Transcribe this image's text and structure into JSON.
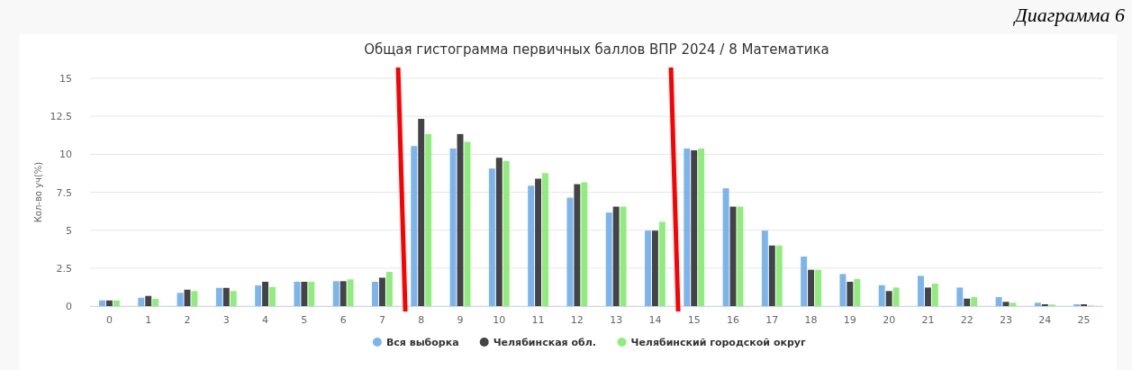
{
  "chart_data": {
    "type": "bar",
    "title": "Общая гистограмма первичных баллов ВПР 2024 / 8 Математика",
    "ylabel": "Кол-во уч(%)",
    "annotations": [
      "Диаграмма 6"
    ],
    "categories": [
      "0",
      "1",
      "2",
      "3",
      "4",
      "5",
      "6",
      "7",
      "8",
      "9",
      "10",
      "11",
      "12",
      "13",
      "14",
      "15",
      "16",
      "17",
      "18",
      "19",
      "20",
      "21",
      "22",
      "23",
      "24",
      "25"
    ],
    "series": [
      {
        "name": "Вся выборка",
        "color": "#7cb5ec",
        "values": [
          0.37,
          0.55,
          0.87,
          1.2,
          1.36,
          1.6,
          1.64,
          1.6,
          10.54,
          10.38,
          9.06,
          7.93,
          7.14,
          6.16,
          4.97,
          10.38,
          7.76,
          4.97,
          3.26,
          2.11,
          1.38,
          1.99,
          1.22,
          0.59,
          0.22,
          0.12
        ]
      },
      {
        "name": "Челябинская обл.",
        "color": "#434348",
        "values": [
          0.37,
          0.67,
          1.08,
          1.2,
          1.6,
          1.6,
          1.64,
          1.87,
          12.33,
          11.33,
          9.77,
          8.39,
          8.03,
          6.55,
          4.97,
          10.26,
          6.55,
          3.99,
          2.39,
          1.6,
          0.99,
          1.22,
          0.49,
          0.28,
          0.12,
          0.12
        ]
      },
      {
        "name": "Челябинский городской округ",
        "color": "#90ed7d",
        "values": [
          0.37,
          0.47,
          0.99,
          0.99,
          1.26,
          1.6,
          1.76,
          2.25,
          11.33,
          10.82,
          9.55,
          8.76,
          8.15,
          6.55,
          5.55,
          10.38,
          6.55,
          3.99,
          2.39,
          1.78,
          1.22,
          1.48,
          0.59,
          0.22,
          0.1,
          0.04
        ]
      }
    ],
    "ylim": [
      0,
      15
    ],
    "yticks": [
      0,
      2.5,
      5,
      7.5,
      10,
      12.5,
      15
    ],
    "grid": "y",
    "legend": "bottom"
  }
}
